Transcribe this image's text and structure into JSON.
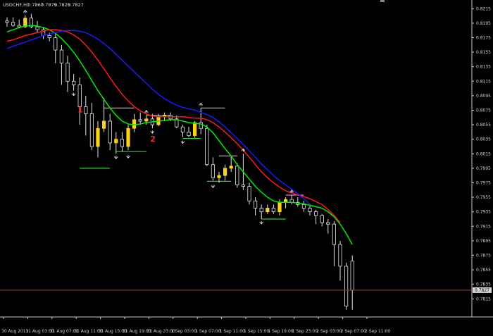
{
  "chart_data": {
    "type": "candlestick",
    "title": "USDCHF,H1",
    "ohlc_header": [
      "0.7867",
      "0.7875",
      "0.7825",
      "0.7827"
    ],
    "current_price": "0.7827",
    "ylim": [
      0.779,
      0.8225
    ],
    "y_ticks": [
      "0.8215",
      "0.8195",
      "0.8175",
      "0.8155",
      "0.8135",
      "0.8115",
      "0.8095",
      "0.8075",
      "0.8055",
      "0.8035",
      "0.8015",
      "0.7995",
      "0.7975",
      "0.7955",
      "0.7935",
      "0.7915",
      "0.7895",
      "0.7875",
      "0.7855",
      "0.7835",
      "0.7815"
    ],
    "x_ticks": [
      {
        "label": "30 Aug 2011",
        "i": 0
      },
      {
        "label": "31 Aug 03:00",
        "i": 4
      },
      {
        "label": "31 Aug 07:00",
        "i": 8
      },
      {
        "label": "31 Aug 11:00",
        "i": 12
      },
      {
        "label": "31 Aug 15:00",
        "i": 16
      },
      {
        "label": "31 Aug 19:00",
        "i": 20
      },
      {
        "label": "31 Aug 23:00",
        "i": 24
      },
      {
        "label": "1 Sep 03:00",
        "i": 28
      },
      {
        "label": "1 Sep 07:00",
        "i": 32
      },
      {
        "label": "1 Sep 11:00",
        "i": 36
      },
      {
        "label": "1 Sep 15:00",
        "i": 40
      },
      {
        "label": "1 Sep 19:00",
        "i": 44
      },
      {
        "label": "1 Sep 23:00",
        "i": 48
      },
      {
        "label": "2 Sep 03:00",
        "i": 52
      },
      {
        "label": "2 Sep 07:00",
        "i": 56
      },
      {
        "label": "2 Sep 11:00",
        "i": 60
      }
    ],
    "candles": [
      {
        "o": 0.8198,
        "h": 0.8203,
        "l": 0.819,
        "c": 0.8196
      },
      {
        "o": 0.8196,
        "h": 0.8203,
        "l": 0.819,
        "c": 0.8192
      },
      {
        "o": 0.8192,
        "h": 0.82,
        "l": 0.8188,
        "c": 0.819
      },
      {
        "o": 0.819,
        "h": 0.8206,
        "l": 0.8188,
        "c": 0.8202
      },
      {
        "o": 0.8202,
        "h": 0.8208,
        "l": 0.8188,
        "c": 0.819
      },
      {
        "o": 0.819,
        "h": 0.8198,
        "l": 0.8183,
        "c": 0.8186
      },
      {
        "o": 0.8186,
        "h": 0.819,
        "l": 0.8173,
        "c": 0.8178
      },
      {
        "o": 0.8178,
        "h": 0.8182,
        "l": 0.817,
        "c": 0.8175
      },
      {
        "o": 0.8175,
        "h": 0.818,
        "l": 0.814,
        "c": 0.8158
      },
      {
        "o": 0.8158,
        "h": 0.8165,
        "l": 0.811,
        "c": 0.814
      },
      {
        "o": 0.814,
        "h": 0.815,
        "l": 0.81,
        "c": 0.8115
      },
      {
        "o": 0.8115,
        "h": 0.8125,
        "l": 0.8102,
        "c": 0.811
      },
      {
        "o": 0.811,
        "h": 0.812,
        "l": 0.8055,
        "c": 0.808
      },
      {
        "o": 0.808,
        "h": 0.8095,
        "l": 0.804,
        "c": 0.807
      },
      {
        "o": 0.807,
        "h": 0.8085,
        "l": 0.802,
        "c": 0.8025
      },
      {
        "o": 0.8025,
        "h": 0.806,
        "l": 0.801,
        "c": 0.805
      },
      {
        "o": 0.805,
        "h": 0.8092,
        "l": 0.8045,
        "c": 0.806
      },
      {
        "o": 0.806,
        "h": 0.807,
        "l": 0.802,
        "c": 0.803
      },
      {
        "o": 0.803,
        "h": 0.8045,
        "l": 0.8015,
        "c": 0.8035
      },
      {
        "o": 0.8035,
        "h": 0.8045,
        "l": 0.8018,
        "c": 0.8025
      },
      {
        "o": 0.8025,
        "h": 0.8055,
        "l": 0.802,
        "c": 0.805
      },
      {
        "o": 0.805,
        "h": 0.807,
        "l": 0.8045,
        "c": 0.8062
      },
      {
        "o": 0.8062,
        "h": 0.8072,
        "l": 0.8055,
        "c": 0.806
      },
      {
        "o": 0.806,
        "h": 0.8068,
        "l": 0.8055,
        "c": 0.8063
      },
      {
        "o": 0.8063,
        "h": 0.807,
        "l": 0.805,
        "c": 0.8055
      },
      {
        "o": 0.8055,
        "h": 0.807,
        "l": 0.8053,
        "c": 0.8066
      },
      {
        "o": 0.8066,
        "h": 0.8072,
        "l": 0.806,
        "c": 0.8068
      },
      {
        "o": 0.8068,
        "h": 0.8072,
        "l": 0.806,
        "c": 0.8063
      },
      {
        "o": 0.8063,
        "h": 0.8068,
        "l": 0.805,
        "c": 0.8052
      },
      {
        "o": 0.8052,
        "h": 0.8055,
        "l": 0.8038,
        "c": 0.8045
      },
      {
        "o": 0.8045,
        "h": 0.8052,
        "l": 0.8038,
        "c": 0.804
      },
      {
        "o": 0.804,
        "h": 0.806,
        "l": 0.8037,
        "c": 0.8058
      },
      {
        "o": 0.8058,
        "h": 0.8078,
        "l": 0.8042,
        "c": 0.805
      },
      {
        "o": 0.805,
        "h": 0.8055,
        "l": 0.7998,
        "c": 0.8
      },
      {
        "o": 0.8,
        "h": 0.801,
        "l": 0.7978,
        "c": 0.7982
      },
      {
        "o": 0.7982,
        "h": 0.799,
        "l": 0.7975,
        "c": 0.7985
      },
      {
        "o": 0.7985,
        "h": 0.8,
        "l": 0.7978,
        "c": 0.7995
      },
      {
        "o": 0.7995,
        "h": 0.8012,
        "l": 0.799,
        "c": 0.7998
      },
      {
        "o": 0.7998,
        "h": 0.8002,
        "l": 0.7968,
        "c": 0.7972
      },
      {
        "o": 0.7972,
        "h": 0.8015,
        "l": 0.7965,
        "c": 0.797
      },
      {
        "o": 0.797,
        "h": 0.7975,
        "l": 0.7945,
        "c": 0.795
      },
      {
        "o": 0.795,
        "h": 0.7955,
        "l": 0.793,
        "c": 0.794
      },
      {
        "o": 0.794,
        "h": 0.7945,
        "l": 0.7925,
        "c": 0.7935
      },
      {
        "o": 0.7935,
        "h": 0.7945,
        "l": 0.7932,
        "c": 0.794
      },
      {
        "o": 0.794,
        "h": 0.7945,
        "l": 0.7932,
        "c": 0.7935
      },
      {
        "o": 0.7935,
        "h": 0.7952,
        "l": 0.793,
        "c": 0.7948
      },
      {
        "o": 0.7948,
        "h": 0.7955,
        "l": 0.794,
        "c": 0.7952
      },
      {
        "o": 0.7952,
        "h": 0.7958,
        "l": 0.7945,
        "c": 0.7948
      },
      {
        "o": 0.7948,
        "h": 0.7955,
        "l": 0.7942,
        "c": 0.7945
      },
      {
        "o": 0.7945,
        "h": 0.795,
        "l": 0.7935,
        "c": 0.794
      },
      {
        "o": 0.794,
        "h": 0.7945,
        "l": 0.793,
        "c": 0.7935
      },
      {
        "o": 0.7935,
        "h": 0.7938,
        "l": 0.7918,
        "c": 0.793
      },
      {
        "o": 0.793,
        "h": 0.7932,
        "l": 0.7915,
        "c": 0.792
      },
      {
        "o": 0.792,
        "h": 0.7925,
        "l": 0.7905,
        "c": 0.7918
      },
      {
        "o": 0.7918,
        "h": 0.7922,
        "l": 0.786,
        "c": 0.789
      },
      {
        "o": 0.789,
        "h": 0.7895,
        "l": 0.784,
        "c": 0.786
      },
      {
        "o": 0.786,
        "h": 0.7865,
        "l": 0.78,
        "c": 0.7805
      },
      {
        "o": 0.7867,
        "h": 0.7875,
        "l": 0.78,
        "c": 0.7827
      }
    ],
    "series": [
      {
        "color": "#00ee00",
        "values": [
          0.8183,
          0.8186,
          0.8189,
          0.8191,
          0.8192,
          0.8191,
          0.8189,
          0.8186,
          0.8181,
          0.8174,
          0.8165,
          0.8155,
          0.8143,
          0.813,
          0.8116,
          0.8102,
          0.809,
          0.8078,
          0.8068,
          0.806,
          0.8056,
          0.8055,
          0.8056,
          0.8058,
          0.8059,
          0.806,
          0.8061,
          0.8062,
          0.8062,
          0.806,
          0.8058,
          0.8057,
          0.8056,
          0.8052,
          0.8044,
          0.8033,
          0.8022,
          0.8012,
          0.8,
          0.799,
          0.798,
          0.797,
          0.7962,
          0.7955,
          0.795,
          0.7948,
          0.7948,
          0.7948,
          0.7947,
          0.7946,
          0.7944,
          0.7942,
          0.794,
          0.7935,
          0.7928,
          0.7918,
          0.7905,
          0.789
        ]
      },
      {
        "color": "#ff1a1a",
        "values": [
          0.817,
          0.8172,
          0.8175,
          0.8178,
          0.818,
          0.8182,
          0.8184,
          0.8186,
          0.8186,
          0.8185,
          0.8183,
          0.8179,
          0.8173,
          0.8165,
          0.8155,
          0.8144,
          0.8132,
          0.812,
          0.8108,
          0.8097,
          0.8088,
          0.808,
          0.8074,
          0.807,
          0.8067,
          0.8066,
          0.8066,
          0.8066,
          0.8066,
          0.8066,
          0.8065,
          0.8064,
          0.8064,
          0.8062,
          0.8058,
          0.8052,
          0.8045,
          0.8037,
          0.8029,
          0.802,
          0.801,
          0.8,
          0.799,
          0.7982,
          0.7975,
          0.7969,
          0.7964,
          0.7961,
          0.7958,
          0.7956,
          0.7953,
          0.7949,
          0.7945,
          0.7938,
          0.793,
          0.792
        ]
      },
      {
        "color": "#1a1aff",
        "values": [
          0.816,
          0.8163,
          0.8166,
          0.8169,
          0.8172,
          0.8175,
          0.8178,
          0.818,
          0.8182,
          0.8184,
          0.8185,
          0.8185,
          0.8184,
          0.8182,
          0.8178,
          0.8173,
          0.8167,
          0.816,
          0.8152,
          0.8144,
          0.8136,
          0.8128,
          0.812,
          0.8112,
          0.8104,
          0.8097,
          0.8091,
          0.8086,
          0.8082,
          0.8079,
          0.8077,
          0.8075,
          0.8072,
          0.8069,
          0.8065,
          0.8059,
          0.8052,
          0.8044,
          0.8036,
          0.8028,
          0.8019,
          0.801,
          0.8001,
          0.7993,
          0.7985,
          0.7978,
          0.7972,
          0.7966,
          0.796,
          0.7953,
          0.7945
        ]
      }
    ],
    "fractals": [
      {
        "i": 3,
        "price": 0.8206,
        "dir": "up"
      },
      {
        "i": 11,
        "price": 0.8102,
        "dir": "down"
      },
      {
        "i": 18,
        "price": 0.8015,
        "dir": "down"
      },
      {
        "i": 20,
        "price": 0.8016,
        "dir": "down"
      },
      {
        "i": 23,
        "price": 0.8068,
        "dir": "up"
      },
      {
        "i": 24,
        "price": 0.805,
        "dir": "down"
      },
      {
        "i": 29,
        "price": 0.8036,
        "dir": "down"
      },
      {
        "i": 32,
        "price": 0.8078,
        "dir": "up"
      },
      {
        "i": 34,
        "price": 0.7975,
        "dir": "down"
      },
      {
        "i": 39,
        "price": 0.8015,
        "dir": "up"
      },
      {
        "i": 42,
        "price": 0.7925,
        "dir": "down"
      },
      {
        "i": 47,
        "price": 0.7958,
        "dir": "up"
      }
    ],
    "level_lines": [
      {
        "i0": 12,
        "i1": 17,
        "price": 0.7995,
        "color": "#33cc33"
      },
      {
        "i0": 18,
        "i1": 23,
        "price": 0.8018,
        "color": "#33cc33"
      },
      {
        "i0": 16,
        "i1": 21,
        "price": 0.8078,
        "color": "#e89898"
      },
      {
        "i0": 23,
        "i1": 27,
        "price": 0.8068,
        "color": "#e89898"
      },
      {
        "i0": 29,
        "i1": 32,
        "price": 0.8036,
        "color": "#33cc33"
      },
      {
        "i0": 32,
        "i1": 36,
        "price": 0.8078,
        "color": "#cc88cc"
      },
      {
        "i0": 33,
        "i1": 37,
        "price": 0.7977,
        "color": "#33cc33"
      },
      {
        "i0": 35,
        "i1": 38,
        "price": 0.8012,
        "color": "#e89898"
      },
      {
        "i0": 42,
        "i1": 46,
        "price": 0.7925,
        "color": "#33cc33"
      },
      {
        "i0": 46,
        "i1": 49,
        "price": 0.7958,
        "color": "#cc88cc"
      }
    ],
    "annotations": [
      {
        "text": "1",
        "i": 12,
        "price": 0.8072
      },
      {
        "text": "2",
        "i": 24,
        "price": 0.8032
      }
    ]
  }
}
